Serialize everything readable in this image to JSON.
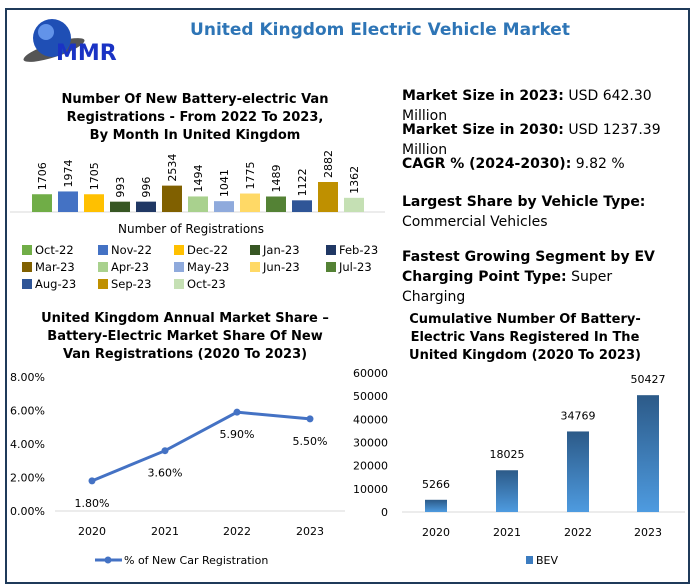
{
  "header": {
    "title": "United Kingdom Electric Vehicle Market",
    "logo_text": "MMR"
  },
  "stats": [
    {
      "label": "Market Size in 2023:",
      "value": "USD 642.30 Million"
    },
    {
      "label": "Market Size in 2030:",
      "value": "USD 1237.39 Million"
    },
    {
      "label": "CAGR % (2024-2030):",
      "value": "9.82 %"
    },
    {
      "label": "Largest Share by Vehicle Type:",
      "value": "Commercial Vehicles"
    },
    {
      "label": "Fastest Growing Segment by EV Charging Point Type:",
      "value": "Super Charging"
    }
  ],
  "chart_data": [
    {
      "type": "bar",
      "title": "Number Of New Battery-electric Van Registrations - From 2022 To 2023, By Month In United Kingdom",
      "xlabel": "Number of Registrations",
      "categories": [
        "Oct-22",
        "Nov-22",
        "Dec-22",
        "Jan-23",
        "Feb-23",
        "Mar-23",
        "Apr-23",
        "May-23",
        "Jun-23",
        "Jul-23",
        "Aug-23",
        "Sep-23",
        "Oct-23"
      ],
      "values": [
        1706,
        1974,
        1705,
        993,
        996,
        2534,
        1494,
        1041,
        1775,
        1489,
        1122,
        2882,
        1362
      ],
      "colors": [
        "#70ad47",
        "#4472c4",
        "#ffc000",
        "#375623",
        "#203864",
        "#806000",
        "#a9d18e",
        "#8faadc",
        "#ffd966",
        "#548235",
        "#2f5597",
        "#bf9000",
        "#c5e0b4"
      ],
      "legend": "bottom"
    },
    {
      "type": "line",
      "title": "United Kingdom Annual Market Share – Battery-Electric Market Share Of New Van Registrations (2020 To 2023)",
      "categories": [
        "2020",
        "2021",
        "2022",
        "2023"
      ],
      "series": [
        {
          "name": "% of New Car Registration",
          "values": [
            1.8,
            3.6,
            5.9,
            5.5
          ],
          "labels": [
            "1.80%",
            "3.60%",
            "5.90%",
            "5.50%"
          ],
          "color": "#4472c4"
        }
      ],
      "ylim": [
        0,
        8
      ],
      "yticks": [
        "0.00%",
        "2.00%",
        "4.00%",
        "6.00%",
        "8.00%"
      ],
      "legend": "bottom"
    },
    {
      "type": "bar",
      "title": "Cumulative Number Of Battery-Electric Vans Registered In The United Kingdom (2020 To 2023)",
      "categories": [
        "2020",
        "2021",
        "2022",
        "2023"
      ],
      "series": [
        {
          "name": "BEV",
          "values": [
            5266,
            18025,
            34769,
            50427
          ],
          "color": "#3c7cc0"
        }
      ],
      "ylim": [
        0,
        60000
      ],
      "yticks": [
        "0",
        "10000",
        "20000",
        "30000",
        "40000",
        "50000",
        "60000"
      ],
      "legend": "bottom"
    }
  ]
}
